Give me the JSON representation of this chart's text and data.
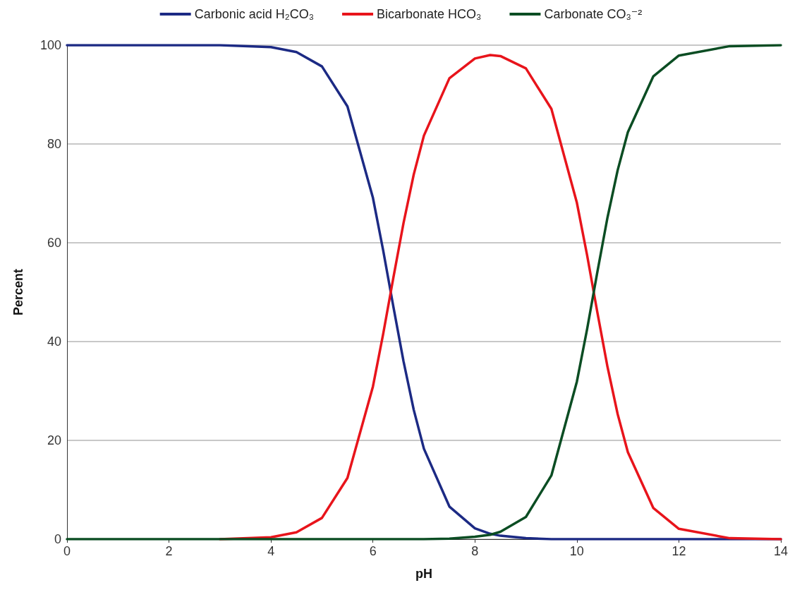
{
  "chart_data": {
    "type": "line",
    "xlabel": "pH",
    "ylabel": "Percent",
    "x": [
      0,
      1,
      2,
      3,
      4,
      4.5,
      5,
      5.5,
      6,
      6.2,
      6.4,
      6.6,
      6.8,
      7,
      7.5,
      8,
      8.3,
      8.5,
      9,
      9.5,
      10,
      10.2,
      10.4,
      10.6,
      10.8,
      11,
      11.5,
      12,
      13,
      14
    ],
    "series": [
      {
        "name": "Carbonic acid H₂CO₃",
        "color": "#1c2a84",
        "values": [
          100,
          100,
          100,
          100,
          99.6,
          98.6,
          95.7,
          87.6,
          69.1,
          58.5,
          47.1,
          36.0,
          26.2,
          18.3,
          6.6,
          2.2,
          1.1,
          0.7,
          0.2,
          0,
          0,
          0,
          0,
          0,
          0,
          0,
          0,
          0,
          0,
          0
        ]
      },
      {
        "name": "Bicarbonate HCO₃",
        "color": "#e8141b",
        "values": [
          null,
          null,
          null,
          0,
          0.4,
          1.4,
          4.3,
          12.4,
          30.9,
          41.5,
          52.9,
          64.0,
          73.8,
          81.7,
          93.3,
          97.3,
          98.0,
          97.8,
          95.3,
          87.1,
          68.1,
          57.5,
          46.0,
          34.9,
          25.3,
          17.6,
          6.3,
          2.1,
          0.2,
          0
        ]
      },
      {
        "name": "Carbonate CO₃⁻²",
        "color": "#0b4d23",
        "values": [
          0,
          0,
          0,
          0,
          0,
          0,
          0,
          0,
          0,
          0,
          0,
          0,
          0,
          0,
          0.1,
          0.5,
          0.9,
          1.5,
          4.5,
          12.9,
          31.9,
          42.5,
          54.0,
          65.1,
          74.7,
          82.4,
          93.7,
          97.9,
          99.8,
          100
        ]
      }
    ],
    "xlim": [
      0,
      14
    ],
    "xticks": [
      0,
      2,
      4,
      6,
      8,
      10,
      12,
      14
    ],
    "ylim": [
      0,
      100
    ],
    "yticks": [
      0,
      20,
      40,
      60,
      80,
      100
    ],
    "grid": "y",
    "legend": "top",
    "marker": "none",
    "line_style": "solid"
  }
}
